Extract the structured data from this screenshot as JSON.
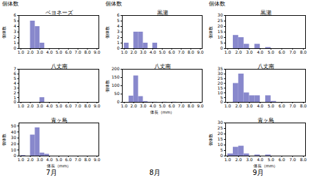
{
  "chart_data": [
    {
      "type": "histogram",
      "title": "ベヨネーズ",
      "bins": [
        1,
        1.5,
        2,
        2.5,
        3,
        3.5,
        4,
        4.5,
        5,
        5.5,
        6,
        6.5,
        7,
        7.5,
        8,
        8.5,
        9
      ],
      "values": [
        0,
        0,
        5,
        4,
        1,
        0,
        0,
        0,
        0,
        0,
        0,
        0,
        0,
        0,
        0,
        0
      ],
      "color": "#8888cc",
      "xlim": [
        0.8,
        9.2
      ],
      "xticks": [
        {
          "value": 1,
          "label": "1.0"
        },
        {
          "value": 2,
          "label": "2.0"
        },
        {
          "value": 3,
          "label": "3.0"
        },
        {
          "value": 4,
          "label": "4.0"
        },
        {
          "value": 5,
          "label": "5.0"
        },
        {
          "value": 6,
          "label": "6.0"
        },
        {
          "value": 7,
          "label": "7.0"
        },
        {
          "value": 8,
          "label": "8.0"
        },
        {
          "value": 9,
          "label": "9.0"
        }
      ],
      "ylim": [
        0,
        6
      ],
      "yticks": [
        0,
        1,
        2,
        3,
        4,
        5,
        6
      ],
      "ylabel": "個体数",
      "annotations": [
        "個体数"
      ]
    },
    {
      "type": "histogram",
      "title": "八丈南",
      "bins": [
        1,
        1.5,
        2,
        2.5,
        3,
        3.5,
        4,
        4.5,
        5,
        5.5,
        6,
        6.5,
        7,
        7.5,
        8,
        8.5,
        9
      ],
      "values": [
        0,
        0,
        0,
        0,
        1,
        0,
        0,
        0,
        0,
        0,
        0,
        0,
        0,
        0,
        0,
        0
      ],
      "color": "#8888cc",
      "xlim": [
        0.8,
        9.2
      ],
      "xticks": [
        {
          "value": 1,
          "label": "1.0"
        },
        {
          "value": 2,
          "label": "2.0"
        },
        {
          "value": 3,
          "label": "3.0"
        },
        {
          "value": 4,
          "label": "4.0"
        },
        {
          "value": 5,
          "label": "5.0"
        },
        {
          "value": 6,
          "label": "6.0"
        },
        {
          "value": 7,
          "label": "7.0"
        },
        {
          "value": 8,
          "label": "8.0"
        },
        {
          "value": 9,
          "label": "9.0"
        }
      ],
      "ylim": [
        0,
        7
      ],
      "yticks": [
        0,
        1,
        2,
        3,
        4,
        5,
        6,
        7
      ]
    },
    {
      "type": "histogram",
      "title": "青ヶ島",
      "bins": [
        1,
        1.5,
        2,
        2.5,
        3,
        3.5,
        4,
        4.5,
        5,
        5.5,
        6,
        6.5,
        7,
        7.5,
        8,
        8.5,
        9
      ],
      "values": [
        1,
        0,
        35,
        47,
        5,
        3,
        0,
        0,
        0,
        0,
        0,
        0,
        0,
        0,
        0,
        0
      ],
      "color": "#8888cc",
      "xlim": [
        0.8,
        9.2
      ],
      "xticks": [
        {
          "value": 1,
          "label": "1.0"
        },
        {
          "value": 2,
          "label": "2.0"
        },
        {
          "value": 3,
          "label": "3.0"
        },
        {
          "value": 4,
          "label": "4.0"
        },
        {
          "value": 5,
          "label": "5.0"
        },
        {
          "value": 6,
          "label": "6.0"
        },
        {
          "value": 7,
          "label": "7.0"
        },
        {
          "value": 8,
          "label": "8.0"
        },
        {
          "value": 9,
          "label": "9.0"
        }
      ],
      "ylim": [
        0,
        55
      ],
      "yticks": [
        0,
        10,
        20,
        30,
        40,
        50
      ],
      "ylabel": "個体数",
      "xlabel": "体長（mm）",
      "annotations": [
        "7月"
      ]
    },
    {
      "type": "histogram",
      "title": "黒瀬",
      "bins": [
        1,
        1.5,
        2,
        2.5,
        3,
        3.5,
        4,
        4.5,
        5,
        5.5,
        6,
        6.5,
        7,
        7.5,
        8,
        8.5,
        9
      ],
      "values": [
        1,
        0,
        3,
        3,
        1,
        0,
        1,
        0,
        0,
        0,
        0,
        0,
        0,
        0,
        0,
        0
      ],
      "color": "#8888cc",
      "xlim": [
        0.8,
        9.2
      ],
      "xticks": [
        {
          "value": 1,
          "label": "1.0"
        },
        {
          "value": 2,
          "label": "2.0"
        },
        {
          "value": 3,
          "label": "3.0"
        },
        {
          "value": 4,
          "label": "4.0"
        },
        {
          "value": 5,
          "label": "5.0"
        },
        {
          "value": 6,
          "label": "6.0"
        },
        {
          "value": 7,
          "label": "7.0"
        },
        {
          "value": 8,
          "label": "8.0"
        },
        {
          "value": 9,
          "label": "9.0"
        }
      ],
      "ylim": [
        0,
        6
      ],
      "yticks": [
        0,
        1,
        2,
        3,
        4,
        5,
        6
      ],
      "ylabel": "個体数",
      "annotations": [
        "個体数"
      ]
    },
    {
      "type": "histogram",
      "title": "八丈南",
      "bins": [
        1,
        1.5,
        2,
        2.5,
        3,
        3.5,
        4,
        4.5,
        5,
        5.5,
        6,
        6.5,
        7,
        7.5,
        8,
        8.5,
        9
      ],
      "values": [
        0,
        38,
        160,
        35,
        5,
        1,
        1,
        0,
        1,
        0,
        1,
        0,
        0,
        0,
        0,
        0
      ],
      "color": "#8888cc",
      "xlim": [
        0.8,
        9.2
      ],
      "xticks": [
        {
          "value": 1,
          "label": "1.0"
        },
        {
          "value": 2,
          "label": "2.0"
        },
        {
          "value": 3,
          "label": "3.0"
        },
        {
          "value": 4,
          "label": "4.0"
        },
        {
          "value": 5,
          "label": "5.0"
        },
        {
          "value": 6,
          "label": "6.0"
        },
        {
          "value": 7,
          "label": "7.0"
        },
        {
          "value": 8,
          "label": "8.0"
        },
        {
          "value": 9,
          "label": "9.0"
        }
      ],
      "ylim": [
        0,
        200
      ],
      "yticks": [
        0,
        50,
        100,
        150,
        200
      ],
      "ylabel": "個体数",
      "xlabel": "体長（mm）",
      "annotations": [
        "8月"
      ]
    },
    {
      "type": "histogram",
      "title": "黒瀬",
      "bins": [
        1,
        1.5,
        2,
        2.5,
        3,
        3.5,
        4,
        4.5,
        5,
        5.5,
        6,
        6.5,
        7,
        7.5,
        8,
        8.5,
        9
      ],
      "values": [
        0,
        12,
        10,
        4,
        0,
        4,
        0,
        1,
        0,
        0,
        0,
        0,
        0,
        0,
        0,
        0
      ],
      "color": "#8888cc",
      "xlim": [
        0.8,
        8.2
      ],
      "xticks": [
        {
          "value": 1,
          "label": "1.0"
        },
        {
          "value": 2,
          "label": "2.0"
        },
        {
          "value": 3,
          "label": "3.0"
        },
        {
          "value": 4,
          "label": "4.0"
        },
        {
          "value": 5,
          "label": "5.0"
        },
        {
          "value": 6,
          "label": "6.0"
        },
        {
          "value": 7,
          "label": "7.0"
        },
        {
          "value": 8,
          "label": "8.0"
        }
      ],
      "ylim": [
        0,
        30
      ],
      "yticks": [
        0,
        5,
        10,
        15,
        20,
        25,
        30
      ],
      "ylabel": "個体数",
      "annotations": [
        "個体数"
      ]
    },
    {
      "type": "histogram",
      "title": "八丈南",
      "bins": [
        1,
        1.5,
        2,
        2.5,
        3,
        3.5,
        4,
        4.5,
        5,
        5.5,
        6,
        6.5,
        7,
        7.5,
        8,
        8.5,
        9
      ],
      "values": [
        0,
        20,
        30,
        10,
        7,
        7,
        0,
        7,
        1,
        0,
        0,
        0,
        0,
        0,
        0,
        0
      ],
      "color": "#8888cc",
      "xlim": [
        0.8,
        8.2
      ],
      "xticks": [
        {
          "value": 1,
          "label": "1.0"
        },
        {
          "value": 2,
          "label": "2.0"
        },
        {
          "value": 3,
          "label": "3.0"
        },
        {
          "value": 4,
          "label": "4.0"
        },
        {
          "value": 5,
          "label": "5.0"
        },
        {
          "value": 6,
          "label": "6.0"
        },
        {
          "value": 7,
          "label": "7.0"
        },
        {
          "value": 8,
          "label": "8.0"
        }
      ],
      "ylim": [
        0,
        35
      ],
      "yticks": [
        0,
        5,
        10,
        15,
        20,
        25,
        30,
        35
      ]
    },
    {
      "type": "histogram",
      "title": "青ヶ島",
      "bins": [
        1,
        1.5,
        2,
        2.5,
        3,
        3.5,
        4,
        4.5,
        5,
        5.5,
        6,
        6.5,
        7,
        7.5,
        8,
        8.5,
        9
      ],
      "values": [
        2,
        8,
        9,
        2,
        0,
        1,
        0,
        1,
        0,
        0,
        0,
        0,
        0,
        0,
        0,
        0
      ],
      "color": "#8888cc",
      "xlim": [
        0.8,
        8.2
      ],
      "xticks": [
        {
          "value": 1,
          "label": "1.0"
        },
        {
          "value": 2,
          "label": "2.0"
        },
        {
          "value": 3,
          "label": "3.0"
        },
        {
          "value": 4,
          "label": "4.0"
        },
        {
          "value": 5,
          "label": "5.0"
        },
        {
          "value": 6,
          "label": "6.0"
        },
        {
          "value": 7,
          "label": "7.0"
        },
        {
          "value": 8,
          "label": "8.0"
        }
      ],
      "ylim": [
        0,
        30
      ],
      "yticks": [
        0,
        5,
        10,
        15,
        20,
        25,
        30
      ],
      "ylabel": "個体数",
      "xlabel": "体長（mm）",
      "annotations": [
        "9月"
      ]
    }
  ]
}
